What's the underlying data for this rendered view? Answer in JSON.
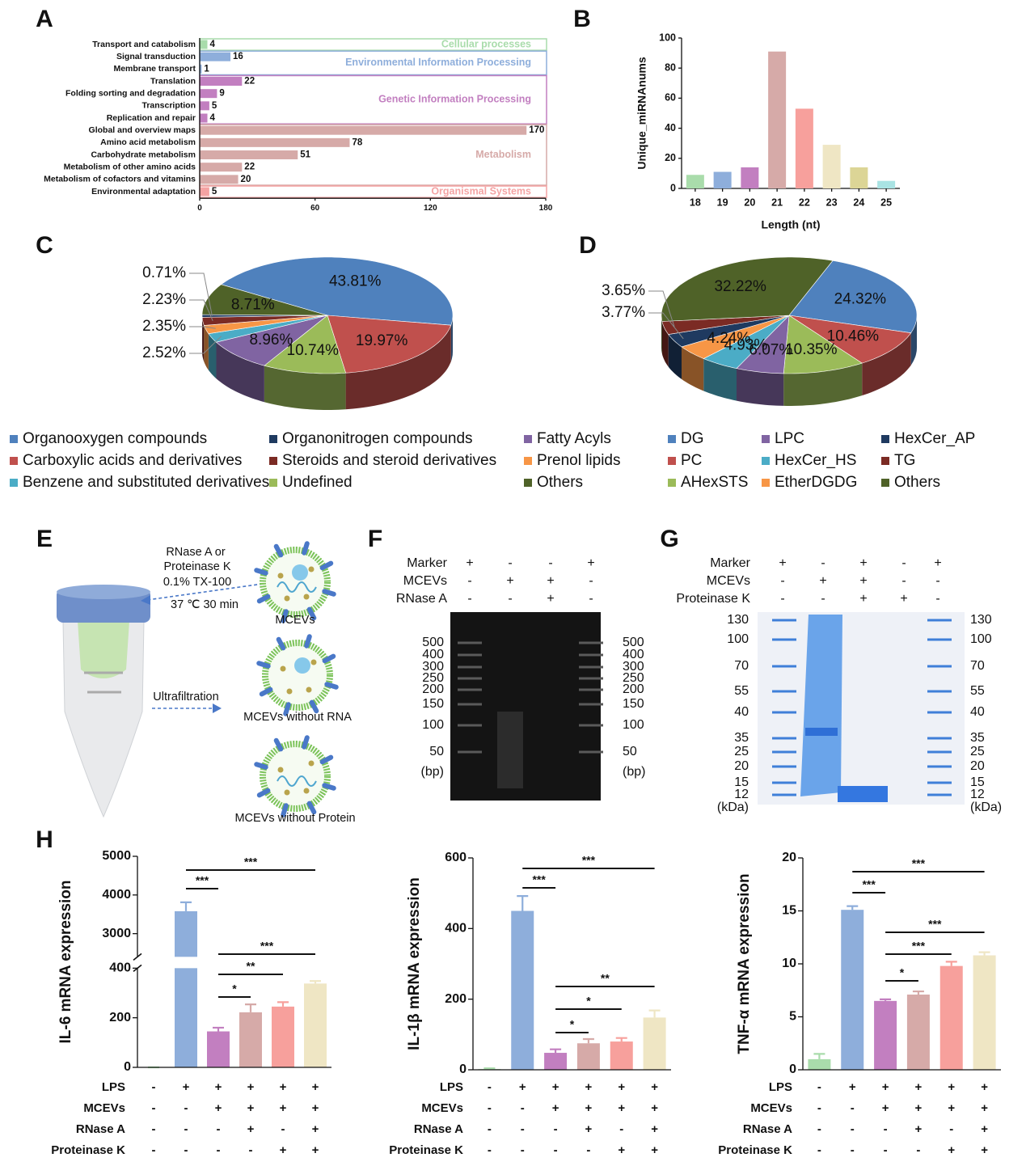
{
  "panels": [
    "A",
    "B",
    "C",
    "D",
    "E",
    "F",
    "G",
    "H"
  ],
  "chart_data": [
    {
      "type": "hbar",
      "groups": [
        {
          "name": "Cellular processes",
          "color": "#a9dcab",
          "categories": [
            "Transport and catabolism"
          ],
          "values": [
            4
          ]
        },
        {
          "name": "Environmental Information Processing",
          "color": "#8eaedb",
          "categories": [
            "Signal transduction",
            "Membrane transport"
          ],
          "values": [
            16,
            1
          ]
        },
        {
          "name": "Genetic Information Processing",
          "color": "#c27fc0",
          "categories": [
            "Translation",
            "Folding sorting and degradation",
            "Transcription",
            "Replication and repair"
          ],
          "values": [
            22,
            9,
            5,
            4
          ]
        },
        {
          "name": "Metabolism",
          "color": "#d6aaa8",
          "categories": [
            "Global and overview maps",
            "Amino acid metabolism",
            "Carbohydrate metabolism",
            "Metabolism of other amino acids",
            "Metabolism of cofactors and vitamins"
          ],
          "values": [
            170,
            78,
            51,
            22,
            20
          ]
        },
        {
          "name": "Organismal Systems",
          "color": "#f4a3a3",
          "categories": [
            "Environmental adaptation"
          ],
          "values": [
            5
          ]
        }
      ],
      "xlim": [
        0,
        180
      ],
      "xticks": [
        0,
        60,
        120,
        180
      ]
    },
    {
      "type": "bar",
      "ylabel": "Unique_miRNAnums",
      "xlabel": "Length (nt)",
      "categories": [
        "18",
        "19",
        "20",
        "21",
        "22",
        "23",
        "24",
        "25"
      ],
      "values": [
        9,
        11,
        14,
        91,
        53,
        29,
        14,
        5
      ],
      "colors": [
        "#a9dcab",
        "#8eaedb",
        "#c27fc0",
        "#d6aaa8",
        "#f7a09c",
        "#efe6c4",
        "#dcd596",
        "#a9e3e3"
      ],
      "ylim": [
        0,
        100
      ],
      "yticks": [
        0,
        20,
        40,
        60,
        80,
        100
      ]
    },
    {
      "type": "pie3d",
      "categories": [
        "Organooxygen compounds",
        "Carboxylic acids and derivatives",
        "Undefined",
        "Fatty Acyls",
        "Benzene and substituted derivatives",
        "Prenol lipids",
        "Steroids and steroid derivatives",
        "Organonitrogen compounds",
        "Others"
      ],
      "values": [
        43.81,
        19.97,
        10.74,
        8.96,
        2.52,
        2.35,
        2.23,
        0.71,
        8.71
      ],
      "value_labels": [
        "43.81%",
        "19.97%",
        "10.74%",
        "8.96%",
        "2.52%",
        "2.35%",
        "2.23%",
        "0.71%",
        "8.71%"
      ],
      "colors": [
        "#4f81bd",
        "#c0504d",
        "#9bbb59",
        "#8064a2",
        "#4bacc6",
        "#f79646",
        "#7b2b24",
        "#1f3a60",
        "#4f6228"
      ]
    },
    {
      "type": "pie3d",
      "categories": [
        "DG",
        "PC",
        "AHexSTS",
        "LPC",
        "HexCer_HS",
        "EtherDGDG",
        "HexCer_AP",
        "TG",
        "Others"
      ],
      "values": [
        24.32,
        10.46,
        10.35,
        6.07,
        4.93,
        4.24,
        3.77,
        3.65,
        32.22
      ],
      "value_labels": [
        "24.32%",
        "10.46%",
        "10.35%",
        "6.07%",
        "4.93%",
        "4.24%",
        "3.77%",
        "3.65%",
        "32.22%"
      ],
      "colors": [
        "#4f81bd",
        "#c0504d",
        "#9bbb59",
        "#8064a2",
        "#4bacc6",
        "#f79646",
        "#1f3a60",
        "#7b2b24",
        "#4f6228"
      ]
    },
    {
      "type": "bar-error",
      "ylabel": "IL-6 mRNA expression",
      "values": [
        0,
        3580,
        145,
        222,
        245,
        338
      ],
      "errors": [
        0,
        230,
        15,
        32,
        18,
        10
      ],
      "colors": [
        "#a9dcab",
        "#8eaedb",
        "#c27fc0",
        "#d6aaa8",
        "#f7a09c",
        "#efe6c4"
      ],
      "ylim": [
        0,
        5000
      ],
      "ybreak": [
        400,
        2400
      ],
      "yticks": [
        0,
        200,
        400,
        3000,
        4000,
        5000
      ],
      "significance": [
        {
          "from": 1,
          "to": 5,
          "label": "***"
        },
        {
          "from": 1,
          "to": 2,
          "label": "***"
        },
        {
          "from": 2,
          "to": 5,
          "label": "***"
        },
        {
          "from": 2,
          "to": 4,
          "label": "**"
        },
        {
          "from": 2,
          "to": 3,
          "label": "*"
        }
      ],
      "conditions": [
        {
          "name": "LPS",
          "marks": [
            "-",
            "+",
            "+",
            "+",
            "+",
            "+"
          ]
        },
        {
          "name": "MCEVs",
          "marks": [
            "-",
            "-",
            "+",
            "+",
            "+",
            "+"
          ]
        },
        {
          "name": "RNase A",
          "marks": [
            "-",
            "-",
            "-",
            "+",
            "-",
            "+"
          ]
        },
        {
          "name": "Proteinase K",
          "marks": [
            "-",
            "-",
            "-",
            "-",
            "+",
            "+"
          ]
        }
      ]
    },
    {
      "type": "bar-error",
      "ylabel": "IL-1β mRNA expression",
      "values": [
        2,
        450,
        48,
        75,
        80,
        148
      ],
      "errors": [
        2,
        42,
        10,
        12,
        10,
        20
      ],
      "colors": [
        "#a9dcab",
        "#8eaedb",
        "#c27fc0",
        "#d6aaa8",
        "#f7a09c",
        "#efe6c4"
      ],
      "ylim": [
        0,
        600
      ],
      "yticks": [
        0,
        200,
        400,
        600
      ],
      "significance": [
        {
          "from": 1,
          "to": 5,
          "label": "***"
        },
        {
          "from": 1,
          "to": 2,
          "label": "***"
        },
        {
          "from": 2,
          "to": 5,
          "label": "**"
        },
        {
          "from": 2,
          "to": 4,
          "label": "*"
        },
        {
          "from": 2,
          "to": 3,
          "label": "*"
        }
      ],
      "conditions": [
        {
          "name": "LPS",
          "marks": [
            "-",
            "+",
            "+",
            "+",
            "+",
            "+"
          ]
        },
        {
          "name": "MCEVs",
          "marks": [
            "-",
            "-",
            "+",
            "+",
            "+",
            "+"
          ]
        },
        {
          "name": "RNase A",
          "marks": [
            "-",
            "-",
            "-",
            "+",
            "-",
            "+"
          ]
        },
        {
          "name": "Proteinase K",
          "marks": [
            "-",
            "-",
            "-",
            "-",
            "+",
            "+"
          ]
        }
      ]
    },
    {
      "type": "bar-error",
      "ylabel": "TNF-α mRNA expression",
      "values": [
        1.0,
        15.1,
        6.5,
        7.1,
        9.8,
        10.8
      ],
      "errors": [
        0.5,
        0.35,
        0.15,
        0.3,
        0.4,
        0.3
      ],
      "colors": [
        "#a9dcab",
        "#8eaedb",
        "#c27fc0",
        "#d6aaa8",
        "#f7a09c",
        "#efe6c4"
      ],
      "ylim": [
        0,
        20
      ],
      "yticks": [
        0,
        5,
        10,
        15,
        20
      ],
      "significance": [
        {
          "from": 1,
          "to": 5,
          "label": "***"
        },
        {
          "from": 1,
          "to": 2,
          "label": "***"
        },
        {
          "from": 2,
          "to": 5,
          "label": "***"
        },
        {
          "from": 2,
          "to": 4,
          "label": "***"
        },
        {
          "from": 2,
          "to": 3,
          "label": "*"
        }
      ],
      "conditions": [
        {
          "name": "LPS",
          "marks": [
            "-",
            "+",
            "+",
            "+",
            "+",
            "+"
          ]
        },
        {
          "name": "MCEVs",
          "marks": [
            "-",
            "-",
            "+",
            "+",
            "+",
            "+"
          ]
        },
        {
          "name": "RNase A",
          "marks": [
            "-",
            "-",
            "-",
            "+",
            "-",
            "+"
          ]
        },
        {
          "name": "Proteinase K",
          "marks": [
            "-",
            "-",
            "-",
            "-",
            "+",
            "+"
          ]
        }
      ]
    }
  ],
  "figure": {
    "E": {
      "treatment": [
        "RNase A or",
        "Proteinase K",
        "0.1% TX-100",
        "37 ℃ 30 min"
      ],
      "step": "Ultrafiltration",
      "vesicles": [
        "MCEVs",
        "MCEVs without RNA",
        "MCEVs without Protein"
      ]
    },
    "F": {
      "rows": [
        {
          "name": "Marker",
          "marks": [
            "+",
            "-",
            "-",
            "+"
          ]
        },
        {
          "name": "MCEVs",
          "marks": [
            "-",
            "+",
            "+",
            "-"
          ]
        },
        {
          "name": "RNase A",
          "marks": [
            "-",
            "-",
            "+",
            "-"
          ]
        }
      ],
      "ladder": [
        500,
        400,
        300,
        250,
        200,
        150,
        100,
        50
      ],
      "unit": "(bp)"
    },
    "G": {
      "rows": [
        {
          "name": "Marker",
          "marks": [
            "+",
            "-",
            "+",
            "-",
            "+"
          ]
        },
        {
          "name": "MCEVs",
          "marks": [
            "-",
            "+",
            "+",
            "-",
            "-"
          ]
        },
        {
          "name": "Proteinase K",
          "marks": [
            "-",
            "-",
            "+",
            "+",
            "-"
          ]
        }
      ],
      "ladder": [
        130,
        100,
        70,
        55,
        40,
        35,
        25,
        20,
        15,
        12
      ],
      "unit": "(kDa)"
    }
  }
}
